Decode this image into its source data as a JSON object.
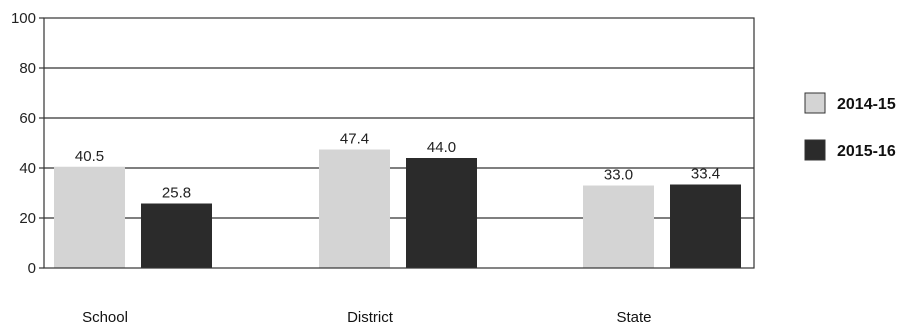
{
  "chart_data": {
    "type": "bar",
    "categories": [
      "School",
      "District",
      "State"
    ],
    "series": [
      {
        "name": "2014-15",
        "values": [
          40.5,
          47.4,
          33.0
        ],
        "labels": [
          "40.5",
          "47.4",
          "33.0"
        ],
        "color": "#d4d4d4"
      },
      {
        "name": "2015-16",
        "values": [
          25.8,
          44.0,
          33.4
        ],
        "labels": [
          "25.8",
          "44.0",
          "33.4"
        ],
        "color": "#2b2b2b"
      }
    ],
    "yticks": [
      "0",
      "20",
      "40",
      "60",
      "80",
      "100"
    ],
    "ylim": [
      0,
      100
    ],
    "grid": true,
    "legend_position": "right"
  }
}
